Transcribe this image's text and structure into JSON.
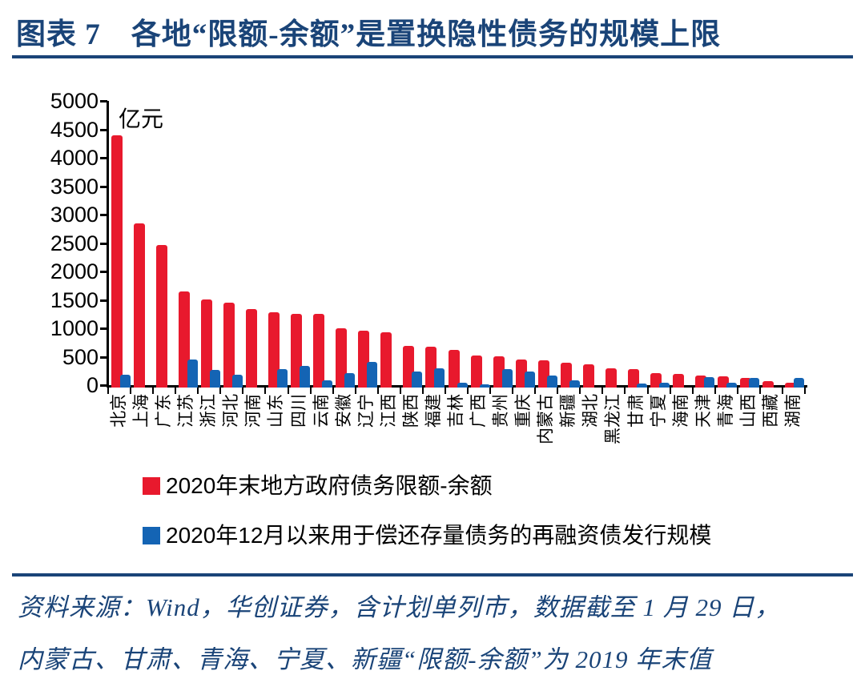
{
  "header": {
    "title": "图表 7　各地“限额-余额”是置换隐性债务的规模上限"
  },
  "chart_data": {
    "type": "bar",
    "unit_label": "亿元",
    "categories": [
      "北京",
      "上海",
      "广东",
      "江苏",
      "浙江",
      "河北",
      "河南",
      "山东",
      "四川",
      "云南",
      "安徽",
      "辽宁",
      "江西",
      "陕西",
      "福建",
      "吉林",
      "广西",
      "贵州",
      "重庆",
      "内蒙古",
      "新疆",
      "湖北",
      "黑龙江",
      "甘肃",
      "宁夏",
      "海南",
      "天津",
      "青海",
      "山西",
      "西藏",
      "湖南"
    ],
    "series": [
      {
        "name": "2020年末地方政府债务限额-余额",
        "color": "#e8192d",
        "values": [
          4430,
          2890,
          2510,
          1690,
          1550,
          1490,
          1385,
          1325,
          1300,
          1290,
          1040,
          995,
          970,
          735,
          715,
          660,
          570,
          555,
          500,
          477,
          441,
          409,
          341,
          318,
          250,
          245,
          205,
          200,
          165,
          115,
          90
        ]
      },
      {
        "name": "2020年12月以来用于偿还存量债务的再融资债发行规模",
        "color": "#1464b4",
        "values": [
          230,
          0,
          0,
          495,
          305,
          220,
          0,
          330,
          375,
          125,
          260,
          450,
          0,
          280,
          335,
          90,
          60,
          320,
          285,
          215,
          123,
          0,
          0,
          68,
          91,
          0,
          182,
          91,
          165,
          0,
          165
        ]
      }
    ],
    "ylim": [
      0,
      5000
    ],
    "ytick_step": 500,
    "grid": false,
    "legend_position": "bottom-left",
    "x_label_rotation": -90
  },
  "footer": {
    "source_line1": "资料来源：Wind，华创证券，含计划单列市，数据截至 1 月 29 日，",
    "source_line2": "内蒙古、甘肃、青海、宁夏、新疆“限额-余额”为 2019 年末值"
  }
}
